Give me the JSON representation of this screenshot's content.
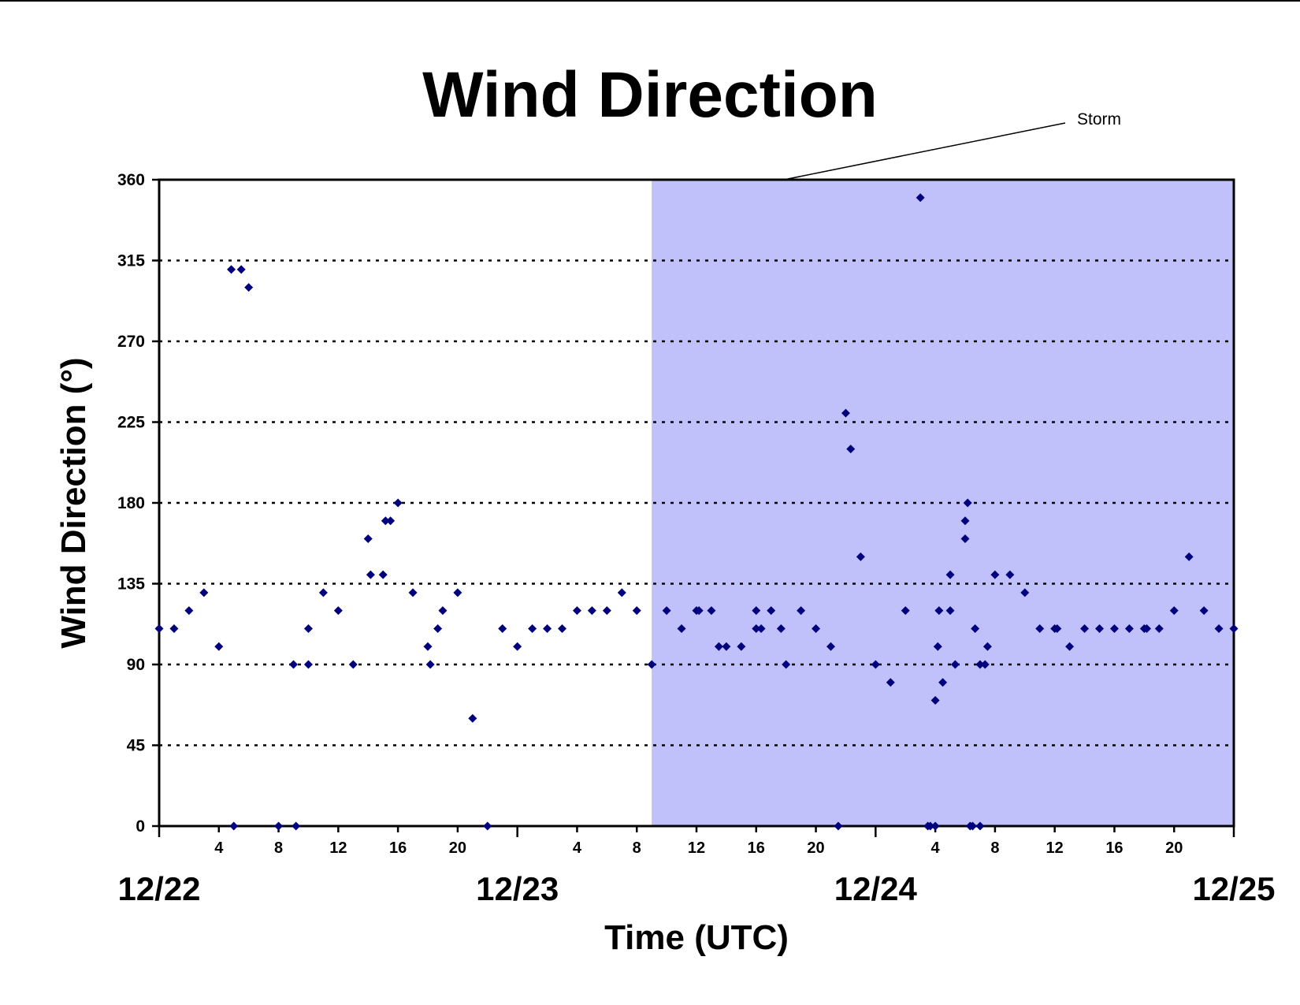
{
  "chart_data": {
    "type": "scatter",
    "title": "Wind Direction",
    "xlabel": "Time (UTC)",
    "ylabel": "Wind Direction (°)",
    "ylim": [
      0,
      360
    ],
    "yticks": [
      0,
      45,
      90,
      135,
      180,
      225,
      270,
      315,
      360
    ],
    "xlim": [
      "12/22 00:00",
      "12/25 00:00"
    ],
    "x_hour_ticks": [
      "4",
      "8",
      "12",
      "16",
      "20"
    ],
    "date_labels": [
      "12/22",
      "12/23",
      "12/24",
      "12/25"
    ],
    "grid": "horizontal dotted",
    "marker_color": "#00007F",
    "shading": {
      "label": "Storm",
      "from": "12/23 09:00",
      "to": "12/25 00:00",
      "color": "#C0C0FA"
    },
    "points": [
      {
        "x": "12/22 00:00",
        "y": 110
      },
      {
        "x": "12/22 01:00",
        "y": 110
      },
      {
        "x": "12/22 02:00",
        "y": 120
      },
      {
        "x": "12/22 03:00",
        "y": 130
      },
      {
        "x": "12/22 04:00",
        "y": 100
      },
      {
        "x": "12/22 04:50",
        "y": 310
      },
      {
        "x": "12/22 05:00",
        "y": 0
      },
      {
        "x": "12/22 05:30",
        "y": 310
      },
      {
        "x": "12/22 06:00",
        "y": 300
      },
      {
        "x": "12/22 08:00",
        "y": 0
      },
      {
        "x": "12/22 09:00",
        "y": 90
      },
      {
        "x": "12/22 09:10",
        "y": 0
      },
      {
        "x": "12/22 10:00",
        "y": 110
      },
      {
        "x": "12/22 10:00",
        "y": 90
      },
      {
        "x": "12/22 11:00",
        "y": 130
      },
      {
        "x": "12/22 12:00",
        "y": 120
      },
      {
        "x": "12/22 13:00",
        "y": 90
      },
      {
        "x": "12/22 14:00",
        "y": 160
      },
      {
        "x": "12/22 14:10",
        "y": 140
      },
      {
        "x": "12/22 15:00",
        "y": 140
      },
      {
        "x": "12/22 15:10",
        "y": 170
      },
      {
        "x": "12/22 15:30",
        "y": 170
      },
      {
        "x": "12/22 16:00",
        "y": 180
      },
      {
        "x": "12/22 17:00",
        "y": 130
      },
      {
        "x": "12/22 18:00",
        "y": 100
      },
      {
        "x": "12/22 18:10",
        "y": 90
      },
      {
        "x": "12/22 18:40",
        "y": 110
      },
      {
        "x": "12/22 19:00",
        "y": 120
      },
      {
        "x": "12/22 20:00",
        "y": 130
      },
      {
        "x": "12/22 21:00",
        "y": 60
      },
      {
        "x": "12/22 22:00",
        "y": 0
      },
      {
        "x": "12/22 23:00",
        "y": 110
      },
      {
        "x": "12/23 00:00",
        "y": 100
      },
      {
        "x": "12/23 01:00",
        "y": 110
      },
      {
        "x": "12/23 02:00",
        "y": 110
      },
      {
        "x": "12/23 03:00",
        "y": 110
      },
      {
        "x": "12/23 04:00",
        "y": 120
      },
      {
        "x": "12/23 05:00",
        "y": 120
      },
      {
        "x": "12/23 06:00",
        "y": 120
      },
      {
        "x": "12/23 07:00",
        "y": 130
      },
      {
        "x": "12/23 08:00",
        "y": 120
      },
      {
        "x": "12/23 09:00",
        "y": 90
      },
      {
        "x": "12/23 10:00",
        "y": 120
      },
      {
        "x": "12/23 11:00",
        "y": 110
      },
      {
        "x": "12/23 12:00",
        "y": 120
      },
      {
        "x": "12/23 12:10",
        "y": 120
      },
      {
        "x": "12/23 13:00",
        "y": 120
      },
      {
        "x": "12/23 13:30",
        "y": 100
      },
      {
        "x": "12/23 14:00",
        "y": 100
      },
      {
        "x": "12/23 15:00",
        "y": 100
      },
      {
        "x": "12/23 16:00",
        "y": 120
      },
      {
        "x": "12/23 16:00",
        "y": 110
      },
      {
        "x": "12/23 16:20",
        "y": 110
      },
      {
        "x": "12/23 17:00",
        "y": 120
      },
      {
        "x": "12/23 17:40",
        "y": 110
      },
      {
        "x": "12/23 18:00",
        "y": 90
      },
      {
        "x": "12/23 19:00",
        "y": 120
      },
      {
        "x": "12/23 20:00",
        "y": 110
      },
      {
        "x": "12/23 21:00",
        "y": 100
      },
      {
        "x": "12/23 21:30",
        "y": 0
      },
      {
        "x": "12/23 22:00",
        "y": 230
      },
      {
        "x": "12/23 22:20",
        "y": 210
      },
      {
        "x": "12/23 23:00",
        "y": 150
      },
      {
        "x": "12/24 00:00",
        "y": 90
      },
      {
        "x": "12/24 01:00",
        "y": 80
      },
      {
        "x": "12/24 02:00",
        "y": 120
      },
      {
        "x": "12/24 03:00",
        "y": 350
      },
      {
        "x": "12/24 03:30",
        "y": 0
      },
      {
        "x": "12/24 03:40",
        "y": 0
      },
      {
        "x": "12/24 04:00",
        "y": 0
      },
      {
        "x": "12/24 04:00",
        "y": 70
      },
      {
        "x": "12/24 04:10",
        "y": 100
      },
      {
        "x": "12/24 04:15",
        "y": 120
      },
      {
        "x": "12/24 04:30",
        "y": 80
      },
      {
        "x": "12/24 05:00",
        "y": 140
      },
      {
        "x": "12/24 05:00",
        "y": 120
      },
      {
        "x": "12/24 05:20",
        "y": 90
      },
      {
        "x": "12/24 06:00",
        "y": 160
      },
      {
        "x": "12/24 06:00",
        "y": 170
      },
      {
        "x": "12/24 06:10",
        "y": 180
      },
      {
        "x": "12/24 06:20",
        "y": 0
      },
      {
        "x": "12/24 06:30",
        "y": 0
      },
      {
        "x": "12/24 06:40",
        "y": 110
      },
      {
        "x": "12/24 07:00",
        "y": 90
      },
      {
        "x": "12/24 07:00",
        "y": 0
      },
      {
        "x": "12/24 07:20",
        "y": 90
      },
      {
        "x": "12/24 07:30",
        "y": 100
      },
      {
        "x": "12/24 08:00",
        "y": 140
      },
      {
        "x": "12/24 09:00",
        "y": 140
      },
      {
        "x": "12/24 10:00",
        "y": 130
      },
      {
        "x": "12/24 11:00",
        "y": 110
      },
      {
        "x": "12/24 12:00",
        "y": 110
      },
      {
        "x": "12/24 12:10",
        "y": 110
      },
      {
        "x": "12/24 13:00",
        "y": 100
      },
      {
        "x": "12/24 14:00",
        "y": 110
      },
      {
        "x": "12/24 15:00",
        "y": 110
      },
      {
        "x": "12/24 16:00",
        "y": 110
      },
      {
        "x": "12/24 17:00",
        "y": 110
      },
      {
        "x": "12/24 18:00",
        "y": 110
      },
      {
        "x": "12/24 18:10",
        "y": 110
      },
      {
        "x": "12/24 19:00",
        "y": 110
      },
      {
        "x": "12/24 20:00",
        "y": 120
      },
      {
        "x": "12/24 21:00",
        "y": 150
      },
      {
        "x": "12/24 22:00",
        "y": 120
      },
      {
        "x": "12/24 23:00",
        "y": 110
      },
      {
        "x": "12/25 00:00",
        "y": 110
      }
    ]
  }
}
